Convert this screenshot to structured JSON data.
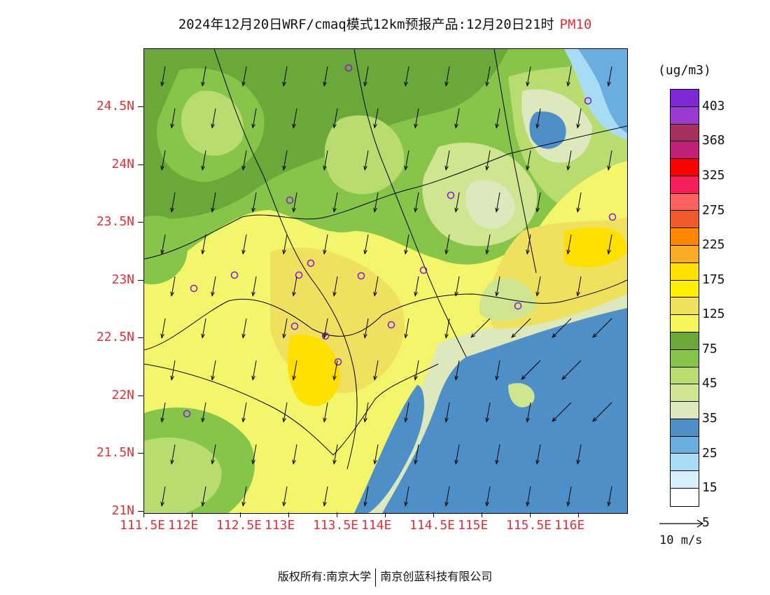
{
  "title": {
    "main": "2024年12月20日WRF/cmaq模式12km预报产品:12月20日21时",
    "variable": "PM10"
  },
  "map": {
    "lat_labels": [
      "24.5N",
      "24N",
      "23.5N",
      "23N",
      "22.5N",
      "22N",
      "21.5N",
      "21N"
    ],
    "lon_labels": [
      "111.5E",
      "112E",
      "112.5E",
      "113E",
      "113.5E",
      "114E",
      "114.5E",
      "115E",
      "115.5E",
      "116E"
    ],
    "background_color": "#f3f56a"
  },
  "legend": {
    "unit": "(ug/m3)",
    "labels": [
      "403",
      "368",
      "325",
      "275",
      "225",
      "175",
      "125",
      "75",
      "45",
      "35",
      "25",
      "15",
      "5"
    ],
    "colors": [
      "#7d2ad6",
      "#9b3ad0",
      "#a63060",
      "#c0207a",
      "#ff0000",
      "#f5205a",
      "#ff6060",
      "#f05a2a",
      "#ff8800",
      "#f8aa28",
      "#fde000",
      "#fff000",
      "#f0e060",
      "#f5f55a",
      "#6aa83a",
      "#86c44a",
      "#b8dc70",
      "#cfe590",
      "#dde8bc",
      "#4f8fc8",
      "#6aaee0",
      "#a8dcf4",
      "#d8f0fc",
      "#ffffff"
    ]
  },
  "wind": {
    "label": "10 m/s"
  },
  "footer": {
    "left": "版权所有:南京大学",
    "right": "南京创蓝科技有限公司"
  }
}
